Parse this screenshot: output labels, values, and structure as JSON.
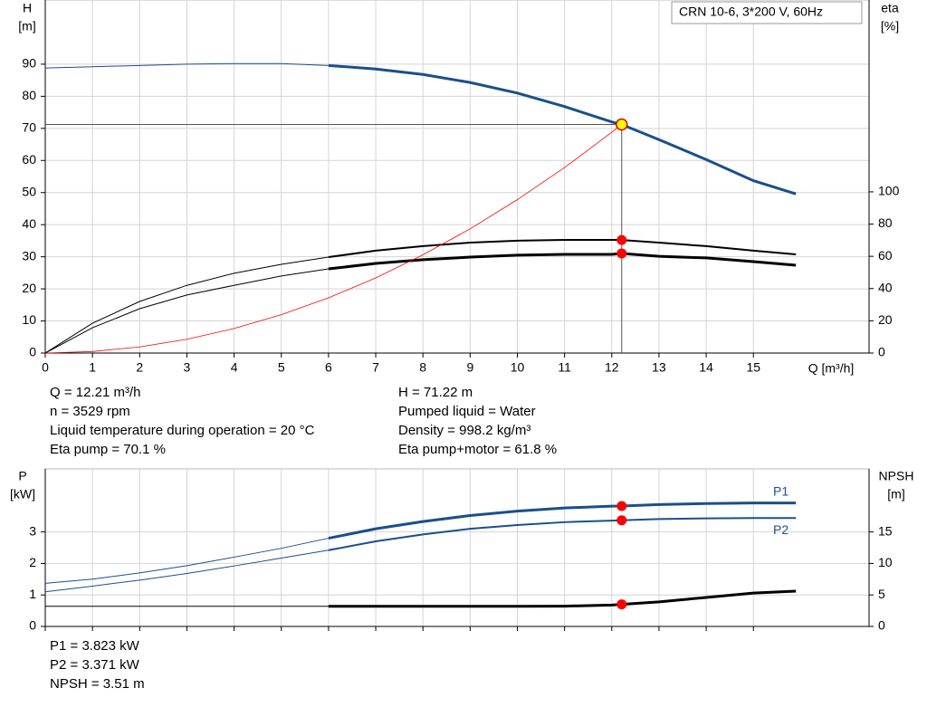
{
  "title": "CRN 10-6, 3*200 V, 60Hz",
  "chart_data": [
    {
      "type": "line",
      "x_label": "Q [m³/h]",
      "y_label": "H",
      "y_unit": "[m]",
      "y2_label": "eta",
      "y2_unit": "[%]",
      "xlim": [
        0,
        17.45
      ],
      "xticks": [
        0,
        1,
        2,
        3,
        4,
        5,
        6,
        7,
        8,
        9,
        10,
        11,
        12,
        13,
        14,
        15
      ],
      "x_tick_labels": true,
      "ylim": [
        0,
        110
      ],
      "yticks": [
        0,
        10,
        20,
        30,
        40,
        50,
        60,
        70,
        80,
        90
      ],
      "y2lim": [
        0,
        219
      ],
      "y2ticks": [
        0,
        20,
        40,
        60,
        80,
        100
      ],
      "grid": true,
      "series": [
        {
          "color": "#1a4f8b",
          "width": 1,
          "x": [
            0,
            1,
            2,
            3,
            4,
            5,
            6
          ],
          "values": [
            88.8,
            89.2,
            89.6,
            90,
            90.2,
            90.2,
            89.6
          ]
        },
        {
          "color": "#1a4f8b",
          "width": 3,
          "x": [
            6,
            7,
            8,
            9,
            10,
            11,
            12,
            12.21,
            13,
            14,
            15,
            15.9
          ],
          "values": [
            89.6,
            88.5,
            86.8,
            84.3,
            81,
            76.8,
            72,
            71.22,
            66.5,
            60.3,
            53.7,
            49.6
          ]
        },
        {
          "color": "#000000",
          "width": 1,
          "axis": "y2",
          "x": [
            0,
            1,
            2,
            3,
            4,
            5,
            6
          ],
          "values": [
            0,
            18.5,
            32,
            42,
            49.5,
            55,
            59.5
          ]
        },
        {
          "color": "#000000",
          "width": 2,
          "axis": "y2",
          "x": [
            6,
            7,
            8,
            9,
            10,
            11,
            12,
            12.21,
            13,
            14,
            15,
            15.9
          ],
          "values": [
            59.5,
            63.5,
            66.3,
            68.5,
            69.7,
            70.2,
            70.2,
            70.1,
            68.5,
            66.3,
            63.5,
            61.2
          ]
        },
        {
          "color": "#000000",
          "width": 1,
          "axis": "y2",
          "x": [
            0,
            1,
            2,
            3,
            4,
            5,
            6
          ],
          "values": [
            0,
            15.7,
            27.5,
            36,
            42,
            47.8,
            52.2
          ]
        },
        {
          "color": "#000000",
          "width": 3,
          "axis": "y2",
          "x": [
            6,
            7,
            8,
            9,
            10,
            11,
            12,
            12.21,
            13,
            14,
            15,
            15.9
          ],
          "values": [
            52.2,
            55.6,
            57.9,
            59.5,
            60.7,
            61.2,
            61.2,
            61.8,
            60,
            59,
            56.7,
            54.5
          ]
        },
        {
          "color": "#ff0000",
          "width": 0.8,
          "x": [
            0,
            1,
            2,
            3,
            4,
            5,
            6,
            7,
            8,
            9,
            10,
            11,
            12,
            12.21
          ],
          "values": [
            0,
            0.48,
            1.91,
            4.3,
            7.64,
            11.94,
            17.2,
            23.4,
            30.6,
            38.7,
            47.8,
            57.8,
            68.8,
            71.22
          ]
        }
      ],
      "markers": [
        {
          "x": 12.21,
          "y": 71.22,
          "color": "#ffff00",
          "edge": "#e00000",
          "guides": true
        },
        {
          "x": 12.21,
          "y": 70.1,
          "axis": "y2",
          "color": "#ff0000"
        },
        {
          "x": 12.21,
          "y": 61.8,
          "axis": "y2",
          "color": "#ff0000"
        }
      ]
    },
    {
      "type": "line",
      "y_label": "P",
      "y_unit": "[kW]",
      "y2_label": "NPSH",
      "y2_unit": "[m]",
      "xlim": [
        0,
        17.45
      ],
      "xticks": [
        0,
        1,
        2,
        3,
        4,
        5,
        6,
        7,
        8,
        9,
        10,
        11,
        12,
        13,
        14,
        15
      ],
      "x_tick_labels": false,
      "ylim": [
        0,
        5
      ],
      "yticks": [
        0,
        1,
        2,
        3
      ],
      "y2lim": [
        0,
        25
      ],
      "y2ticks": [
        0,
        5,
        10,
        15
      ],
      "grid": true,
      "series": [
        {
          "color": "#1a4f8b",
          "width": 1,
          "x": [
            0,
            1,
            2,
            3,
            4,
            5,
            6
          ],
          "values": [
            1.37,
            1.5,
            1.7,
            1.93,
            2.2,
            2.48,
            2.8
          ]
        },
        {
          "name": "P1",
          "label_pos": "above",
          "color": "#1a4f8b",
          "width": 3,
          "x": [
            6,
            7,
            8,
            9,
            10,
            11,
            12,
            12.21,
            13,
            14,
            15,
            15.9
          ],
          "values": [
            2.8,
            3.1,
            3.33,
            3.52,
            3.66,
            3.76,
            3.82,
            3.823,
            3.87,
            3.9,
            3.92,
            3.92
          ]
        },
        {
          "color": "#1a4f8b",
          "width": 1,
          "x": [
            0,
            1,
            2,
            3,
            4,
            5,
            6
          ],
          "values": [
            1.1,
            1.28,
            1.47,
            1.68,
            1.92,
            2.17,
            2.42
          ]
        },
        {
          "name": "P2",
          "label_pos": "below",
          "color": "#1a4f8b",
          "width": 2,
          "x": [
            6,
            7,
            8,
            9,
            10,
            11,
            12,
            12.21,
            13,
            14,
            15,
            15.9
          ],
          "values": [
            2.42,
            2.7,
            2.92,
            3.1,
            3.22,
            3.31,
            3.36,
            3.371,
            3.41,
            3.43,
            3.44,
            3.44
          ]
        },
        {
          "color": "#000000",
          "width": 1,
          "axis": "y2",
          "x": [
            0,
            6
          ],
          "values": [
            3.2,
            3.2
          ]
        },
        {
          "color": "#000000",
          "width": 3,
          "axis": "y2",
          "x": [
            6,
            7,
            8,
            9,
            10,
            11,
            12,
            12.21,
            13,
            14,
            15,
            15.9
          ],
          "values": [
            3.2,
            3.2,
            3.2,
            3.2,
            3.2,
            3.22,
            3.4,
            3.51,
            3.9,
            4.6,
            5.3,
            5.6
          ]
        }
      ],
      "markers": [
        {
          "x": 12.21,
          "y": 3.823,
          "color": "#ff0000"
        },
        {
          "x": 12.21,
          "y": 3.371,
          "color": "#ff0000"
        },
        {
          "x": 12.21,
          "y": 3.51,
          "axis": "y2",
          "color": "#ff0000"
        }
      ]
    }
  ],
  "info": {
    "left": [
      "Q = 12.21 m³/h",
      "n = 3529 rpm",
      "Liquid temperature during operation = 20 °C",
      "Eta pump = 70.1 %"
    ],
    "right": [
      "H = 71.22 m",
      "Pumped liquid = Water",
      "Density = 998.2 kg/m³",
      "Eta pump+motor = 61.8 %"
    ],
    "bottom": [
      "P1 = 3.823 kW",
      "P2 = 3.371 kW",
      "NPSH = 3.51 m"
    ]
  }
}
